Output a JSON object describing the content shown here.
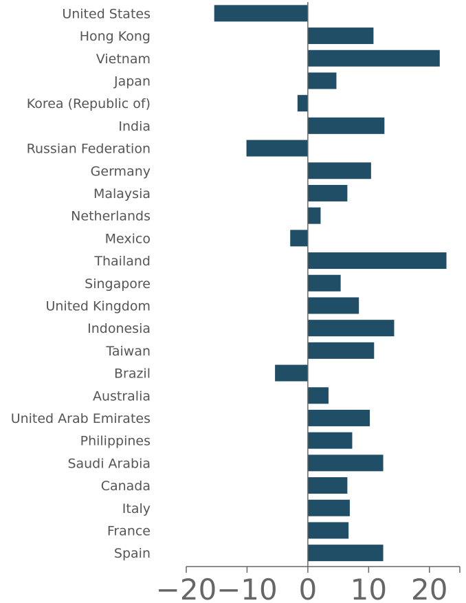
{
  "chart_data": {
    "type": "bar",
    "orientation": "horizontal",
    "title": "",
    "xlabel": "",
    "ylabel": "",
    "xlim": [
      -20,
      25
    ],
    "xticks": [
      -20,
      -10,
      0,
      10,
      20
    ],
    "xtick_labels": [
      "−20",
      "−10",
      "0",
      "10",
      "20"
    ],
    "grid": false,
    "bar_color": "#1f4e66",
    "categories": [
      "United States",
      "Hong Kong",
      "Vietnam",
      "Japan",
      "Korea (Republic of)",
      "India",
      "Russian Federation",
      "Germany",
      "Malaysia",
      "Netherlands",
      "Mexico",
      "Thailand",
      "Singapore",
      "United Kingdom",
      "Indonesia",
      "Taiwan",
      "Brazil",
      "Australia",
      "United Arab Emirates",
      "Philippines",
      "Saudi Arabia",
      "Canada",
      "Italy",
      "France",
      "Spain"
    ],
    "values": [
      -15.4,
      10.8,
      21.7,
      4.7,
      -1.7,
      12.6,
      -10.1,
      10.4,
      6.5,
      2.1,
      -2.9,
      22.8,
      5.4,
      8.4,
      14.2,
      10.9,
      -5.4,
      3.4,
      10.2,
      7.3,
      12.4,
      6.5,
      6.9,
      6.7,
      12.4
    ]
  }
}
